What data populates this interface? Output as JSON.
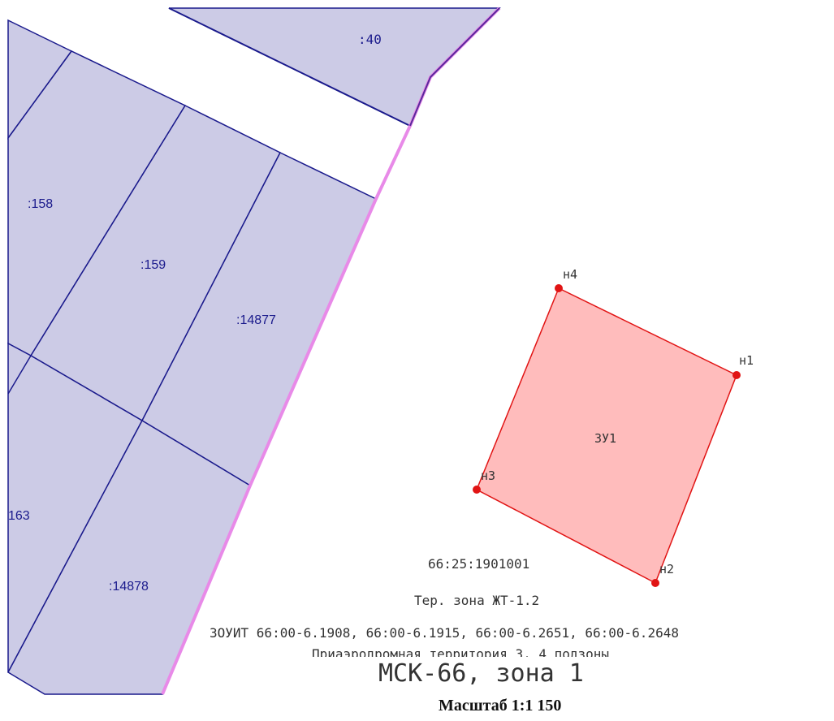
{
  "parcels": {
    "p40": ":40",
    "p158": ":158",
    "p159": ":159",
    "p14877": ":14877",
    "p163": "163",
    "p14878": ":14878"
  },
  "new_plot": {
    "label": "ЗУ1",
    "points": [
      "н1",
      "н2",
      "н3",
      "н4"
    ],
    "fill_color": "#ffbcbc",
    "stroke_color": "#e11414"
  },
  "colors": {
    "parcel_fill": "#cccbe6",
    "parcel_border": "#1a1a8c",
    "boundary_line": "#e88ae8"
  },
  "info": {
    "quarter": "66:25:1901001",
    "zone": "Тер. зона ЖТ-1.2",
    "zouit": "ЗОУИТ 66:00-6.1908, 66:00-6.1915, 66:00-6.2651, 66:00-6.2648",
    "airport": "Приаэродромная территория 3, 4 подзоны",
    "crs": "МСК-66, зона 1",
    "scale": "Масштаб 1:1 150"
  }
}
